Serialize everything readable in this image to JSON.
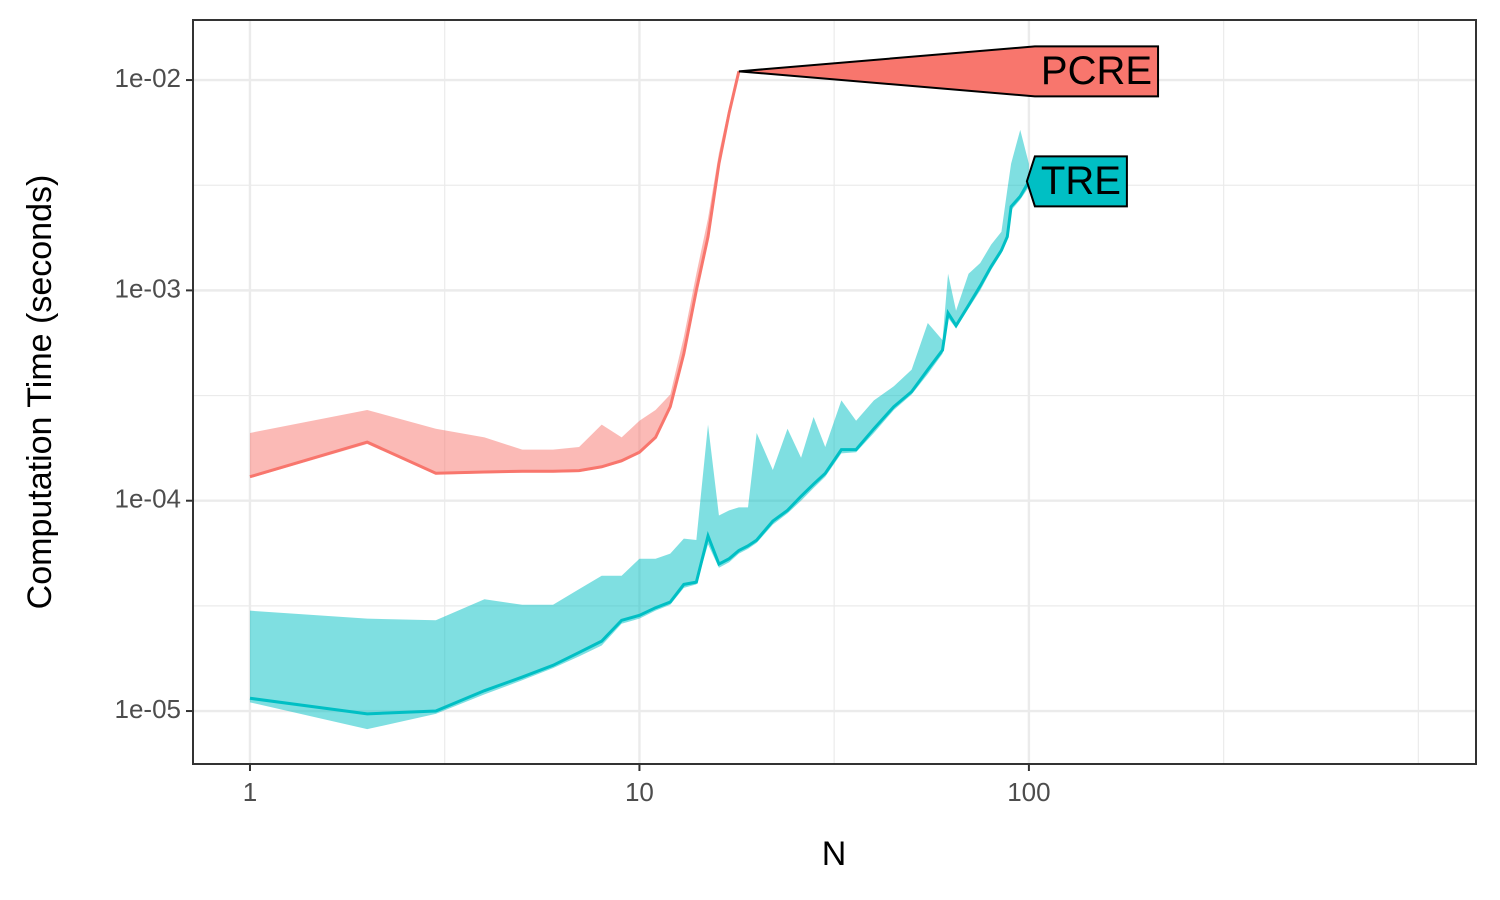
{
  "chart_data": {
    "type": "ribbon-line",
    "x_label": "N",
    "y_label": "Computation Time (seconds)",
    "xlog": true,
    "ylog": true,
    "grid": true,
    "xlim": [
      0.714,
      1406
    ],
    "xticks": [
      1,
      10,
      100
    ],
    "ylim": [
      5.6e-06,
      0.0193
    ],
    "yticks": [
      {
        "value": 1e-05,
        "label": "1e-05"
      },
      {
        "value": 0.0001,
        "label": "1e-04"
      },
      {
        "value": 0.001,
        "label": "1e-03"
      },
      {
        "value": 0.01,
        "label": "1e-02"
      }
    ],
    "series": [
      {
        "name": "PCRE",
        "color": "#F8766D",
        "x": [
          1,
          2,
          3,
          4,
          5,
          6,
          7,
          8,
          9,
          10,
          11,
          12,
          13,
          14,
          15,
          16,
          17,
          18
        ],
        "values": [
          0.00013,
          0.00019,
          0.000135,
          0.000137,
          0.000138,
          0.000138,
          0.000139,
          0.000145,
          0.000155,
          0.00017,
          0.0002,
          0.00028,
          0.0005,
          0.001,
          0.0018,
          0.004,
          0.007,
          0.011
        ],
        "lower": [
          0.000128,
          0.000186,
          0.000133,
          0.000135,
          0.000136,
          0.000136,
          0.000137,
          0.000143,
          0.000152,
          0.000167,
          0.000196,
          0.000275,
          0.00049,
          0.00098,
          0.00177,
          0.0039,
          0.0069,
          0.011
        ],
        "upper": [
          0.00021,
          0.00027,
          0.00022,
          0.0002,
          0.000175,
          0.000175,
          0.00018,
          0.00023,
          0.0002,
          0.00024,
          0.00027,
          0.00032,
          0.0006,
          0.0012,
          0.0022,
          0.0045,
          0.0075,
          0.011
        ]
      },
      {
        "name": "TRE",
        "color": "#00BFC4",
        "x": [
          1,
          2,
          3,
          4,
          5,
          6,
          7,
          8,
          9,
          10,
          11,
          12,
          13,
          14,
          15,
          16,
          17,
          18,
          19,
          20,
          22,
          24,
          26,
          28,
          30,
          33,
          36,
          40,
          45,
          50,
          55,
          60,
          62,
          65,
          70,
          75,
          80,
          85,
          88,
          90,
          95,
          100
        ],
        "values": [
          1.15e-05,
          9.7e-06,
          1e-05,
          1.25e-05,
          1.45e-05,
          1.65e-05,
          1.9e-05,
          2.15e-05,
          2.7e-05,
          2.85e-05,
          3.1e-05,
          3.3e-05,
          4e-05,
          4.1e-05,
          6.8e-05,
          5e-05,
          5.3e-05,
          5.8e-05,
          6.1e-05,
          6.5e-05,
          8e-05,
          9e-05,
          0.000105,
          0.00012,
          0.000135,
          0.000175,
          0.000175,
          0.00022,
          0.00028,
          0.00033,
          0.00042,
          0.00052,
          0.00078,
          0.00068,
          0.00085,
          0.00105,
          0.0013,
          0.00155,
          0.0018,
          0.0025,
          0.0028,
          0.0033
        ],
        "lower": [
          1.1e-05,
          8.2e-06,
          9.7e-06,
          1.2e-05,
          1.4e-05,
          1.6e-05,
          1.82e-05,
          2.05e-05,
          2.6e-05,
          2.75e-05,
          3e-05,
          3.2e-05,
          3.85e-05,
          4e-05,
          6.2e-05,
          4.8e-05,
          5.1e-05,
          5.6e-05,
          5.9e-05,
          6.3e-05,
          7.7e-05,
          8.7e-05,
          0.0001,
          0.000115,
          0.00013,
          0.000168,
          0.00017,
          0.00021,
          0.00027,
          0.00032,
          0.0004,
          0.0005,
          0.00074,
          0.00066,
          0.00082,
          0.001,
          0.00125,
          0.0015,
          0.00175,
          0.0024,
          0.0027,
          0.0031
        ],
        "upper": [
          3e-05,
          2.75e-05,
          2.7e-05,
          3.4e-05,
          3.2e-05,
          3.2e-05,
          3.8e-05,
          4.4e-05,
          4.4e-05,
          5.3e-05,
          5.3e-05,
          5.6e-05,
          6.6e-05,
          6.5e-05,
          0.00023,
          8.5e-05,
          9e-05,
          9.3e-05,
          9.3e-05,
          0.00021,
          0.00014,
          0.00022,
          0.00016,
          0.00025,
          0.00018,
          0.0003,
          0.00024,
          0.0003,
          0.00035,
          0.00042,
          0.0007,
          0.00058,
          0.0012,
          0.0008,
          0.0012,
          0.00135,
          0.00165,
          0.0019,
          0.003,
          0.004,
          0.0058,
          0.004
        ]
      }
    ]
  }
}
